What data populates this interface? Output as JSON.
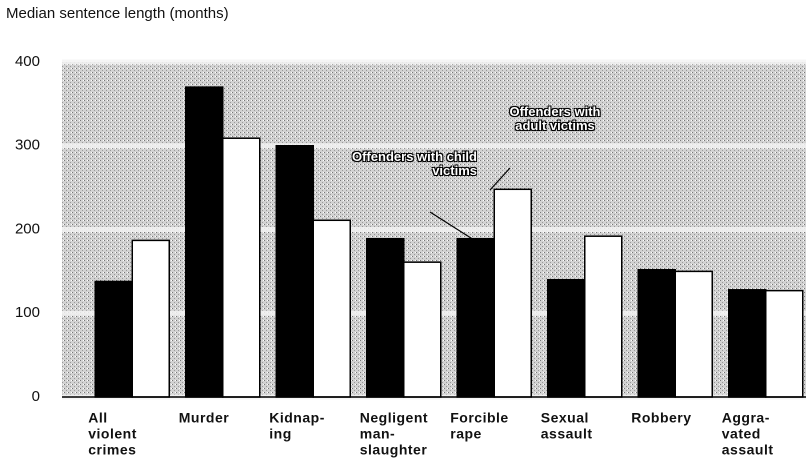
{
  "chart_data": {
    "type": "bar",
    "title": "Median sentence length (months)",
    "categories": [
      [
        "All",
        "violent",
        "crimes"
      ],
      [
        "Murder"
      ],
      [
        "Kidnap-",
        "ing"
      ],
      [
        "Negligent",
        "man-",
        "slaughter"
      ],
      [
        "Forcible",
        "rape"
      ],
      [
        "Sexual",
        "assault"
      ],
      [
        "Robbery"
      ],
      [
        "Aggra-",
        "vated",
        "assault"
      ]
    ],
    "series": [
      {
        "name": "Offenders with child victims",
        "color": "#000000",
        "values": [
          138,
          370,
          300,
          189,
          189,
          140,
          152,
          128
        ]
      },
      {
        "name": "Offenders with adult victims",
        "color": "#ffffff",
        "values": [
          187,
          309,
          211,
          161,
          248,
          192,
          150,
          127
        ]
      }
    ],
    "ylim": [
      0,
      400
    ],
    "yticks": [
      0,
      100,
      200,
      300,
      400
    ],
    "grid": true
  }
}
